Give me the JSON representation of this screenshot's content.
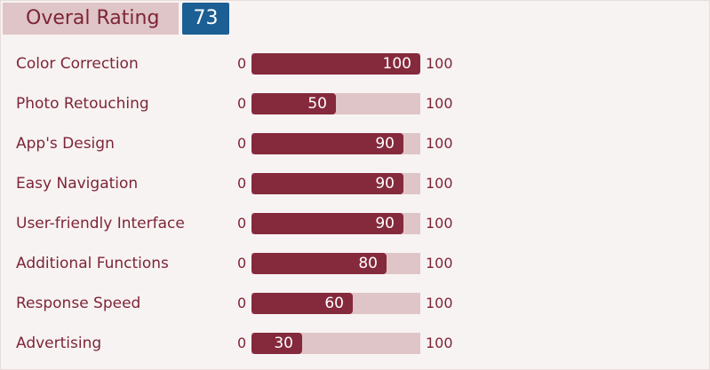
{
  "header": {
    "title": "Overal Rating",
    "score": 73
  },
  "items": [
    {
      "label": "Color Correction",
      "min": 0,
      "max": 100,
      "value": 100
    },
    {
      "label": "Photo Retouching",
      "min": 0,
      "max": 100,
      "value": 50
    },
    {
      "label": "App's Design",
      "min": 0,
      "max": 100,
      "value": 90
    },
    {
      "label": "Easy Navigation",
      "min": 0,
      "max": 100,
      "value": 90
    },
    {
      "label": "User-friendly Interface",
      "min": 0,
      "max": 100,
      "value": 90
    },
    {
      "label": "Additional Functions",
      "min": 0,
      "max": 100,
      "value": 80
    },
    {
      "label": "Response Speed",
      "min": 0,
      "max": 100,
      "value": 60
    },
    {
      "label": "Advertising",
      "min": 0,
      "max": 100,
      "value": 30
    }
  ]
}
